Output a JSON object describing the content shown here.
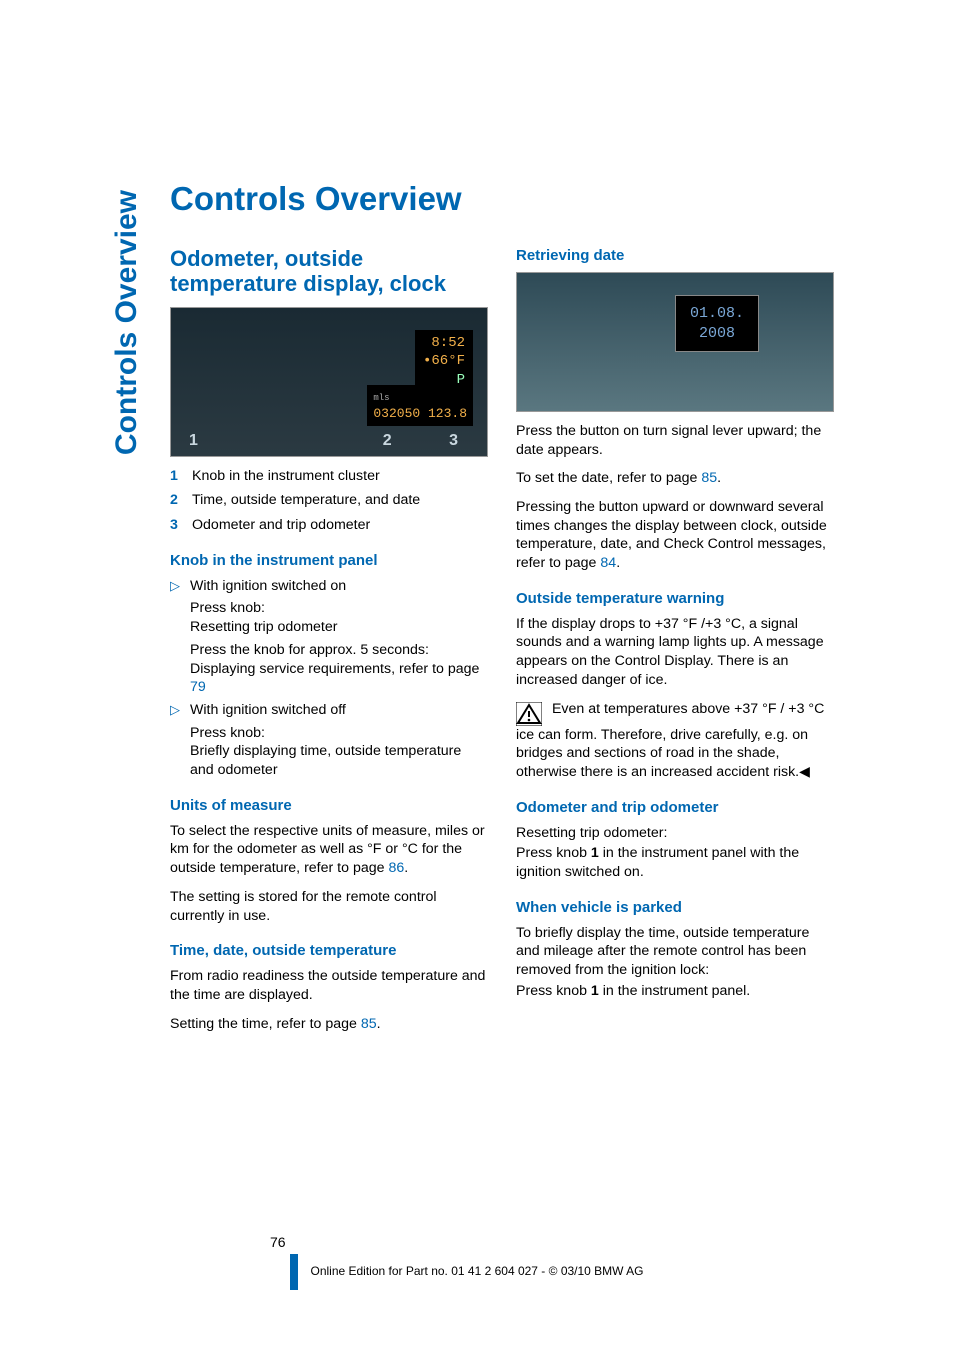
{
  "side_label_html": "<span style='color:#0067b1'>Controls Overview</span>",
  "chapter_title": "Controls Overview",
  "page_number": "76",
  "footer": "Online Edition for Part no. 01 41 2 604 027 - © 03/10 BMW AG",
  "colors": {
    "brand": "#0067b1",
    "amber": "#f2b04a"
  },
  "left": {
    "section_h": "Odometer, outside temperature display, clock",
    "cluster": {
      "time": "8:52",
      "temp": "•66°F",
      "shift": "P",
      "odo": "032050 123.8",
      "callouts": [
        "1",
        "2",
        "3"
      ]
    },
    "legend": [
      {
        "n": "1",
        "t": "Knob in the instrument cluster"
      },
      {
        "n": "2",
        "t": "Time, outside temperature, and date"
      },
      {
        "n": "3",
        "t": "Odometer and trip odometer"
      }
    ],
    "knob_h": "Knob in the instrument panel",
    "knob_items": [
      {
        "head": "With ignition switched on",
        "lines": [
          "Press knob:",
          "Resetting trip odometer",
          "Press the knob for approx. 5 seconds:",
          "Displaying service requirements, refer to page "
        ],
        "page_link": "79"
      },
      {
        "head": "With ignition switched off",
        "lines": [
          "Press knob:",
          "Briefly displaying time, outside temperature and odometer"
        ]
      }
    ],
    "units_h": "Units of measure",
    "units_p1": "To select the respective units of measure, miles or km for the odometer as well as  °F  or  °C for the outside temperature, refer to page ",
    "units_link": "86",
    "units_p2": "The setting is stored for the remote control currently in use.",
    "time_h": "Time, date, outside temperature",
    "time_p1": "From radio readiness the outside temperature and the time are displayed.",
    "time_p2_pre": "Setting the time, refer to page ",
    "time_link": "85"
  },
  "right": {
    "retrieving_h": "Retrieving date",
    "date_box": {
      "line1": "01.08.",
      "line2": "2008"
    },
    "date_p1": "Press the button on turn signal lever upward; the date appears.",
    "date_p2_pre": "To set the date, refer to page ",
    "date_link": "85",
    "date_p3_pre": "Pressing the button upward or downward several times changes the display between clock, outside temperature, date, and Check Control messages, refer to page ",
    "date_link2": "84",
    "warn_h": "Outside temperature warning",
    "warn_p1": "If the display drops to +37 °F /+3 °C, a signal sounds and a warning lamp lights up. A message appears on the Control Display. There is an increased danger of ice.",
    "warn_p2": "Even at temperatures above +37 °F / +3 °C ice can form. Therefore, drive carefully, e.g. on bridges and sections of road in the shade, otherwise there is an increased accident risk.",
    "odo_h": "Odometer and trip odometer",
    "odo_p1": "Resetting trip odometer:",
    "odo_p2": "Press knob 1 in the instrument panel with the ignition switched on.",
    "park_h": "When vehicle is parked",
    "park_p": "To briefly display the time, outside temperature and mileage after the remote control has been removed from the ignition lock:",
    "park_p2": "Press knob 1 in the instrument panel."
  }
}
